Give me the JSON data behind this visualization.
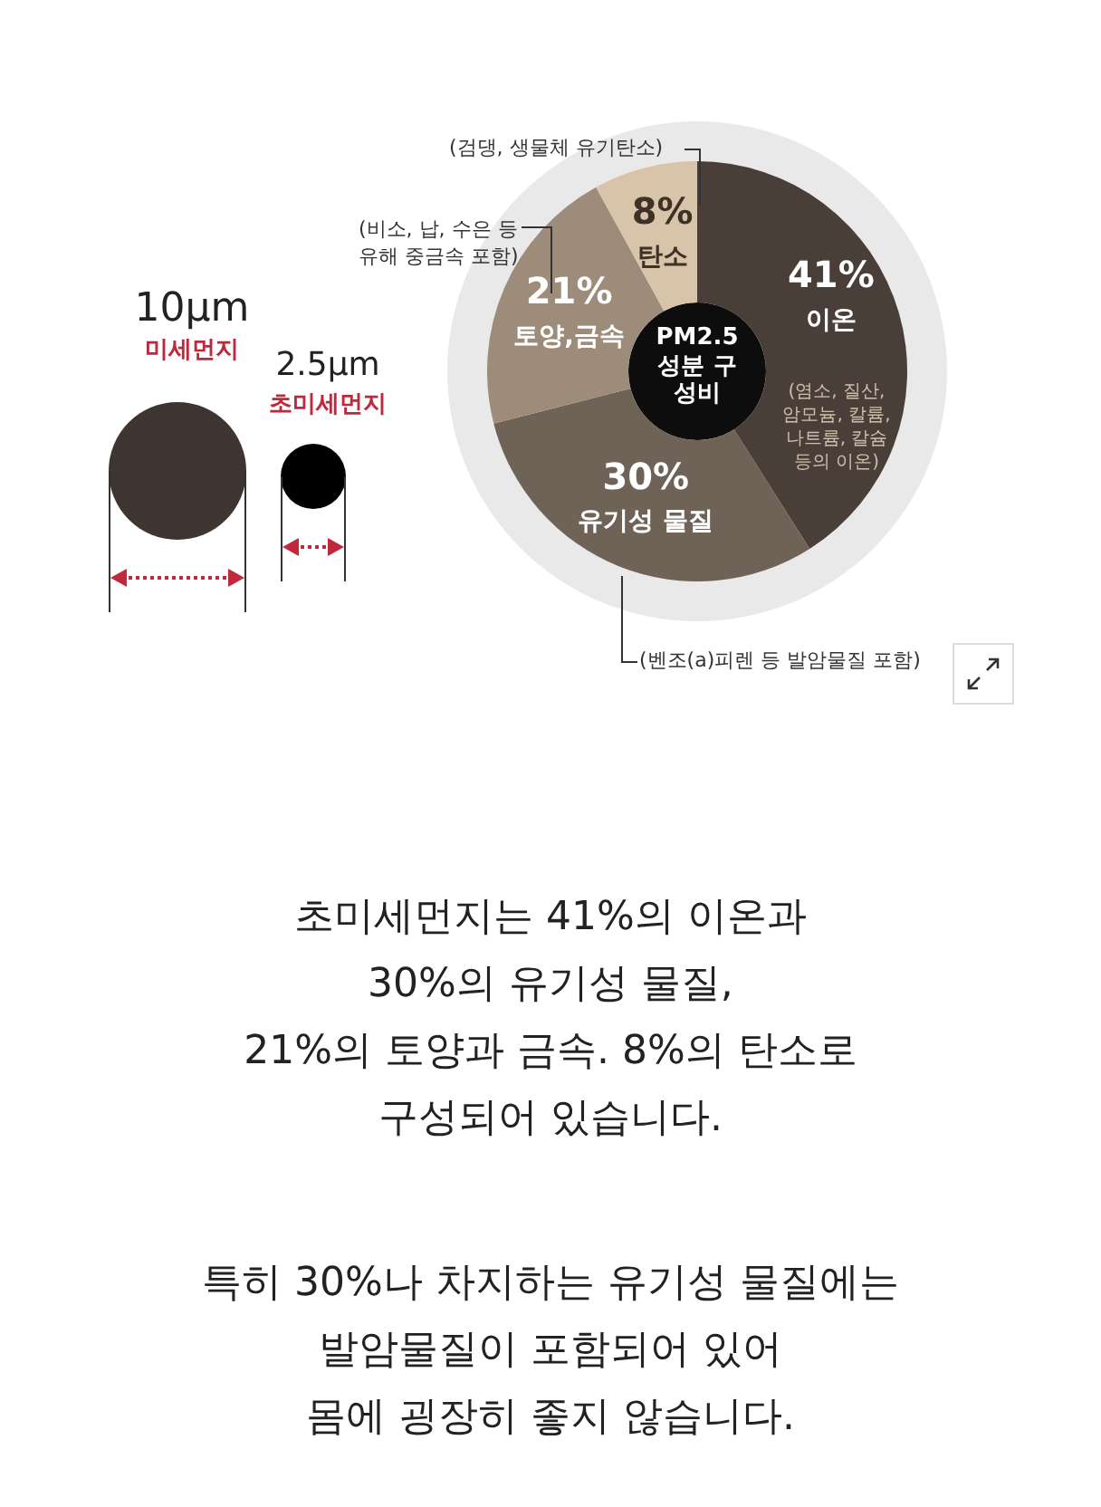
{
  "chart_data": {
    "type": "donut",
    "title": "PM2.5 성분 구성비",
    "categories": [
      "이온",
      "유기성 물질",
      "토양,금속",
      "탄소"
    ],
    "values": [
      41,
      30,
      21,
      8
    ],
    "colors": [
      "#4a3f38",
      "#6f6257",
      "#9d8c7a",
      "#d8c4a8"
    ],
    "value_labels": [
      "41%",
      "30%",
      "21%",
      "8%"
    ],
    "annotations": [
      "10μm",
      "미세먼지",
      "2.5μm",
      "초미세먼지",
      "(검댕, 생물체 유기탄소)",
      "(비소, 납, 수은 등 유해 중금속 포함)",
      "(염소, 질산, 암모늄, 칼륨, 나트륨, 칼슘 등의 이온)",
      "(벤조(a)피렌 등 발암물질 포함)",
      "초미세먼지는 41%의 이온과",
      "30%의 유기성 물질,",
      "21%의 토양과 금속. 8%의 탄소로",
      "구성되어 있습니다.",
      "특히 30%나 차지하는 유기성 물질에는",
      "발암물질이 포함되어 있어",
      "몸에 굉장히 좋지 않습니다."
    ]
  }
}
